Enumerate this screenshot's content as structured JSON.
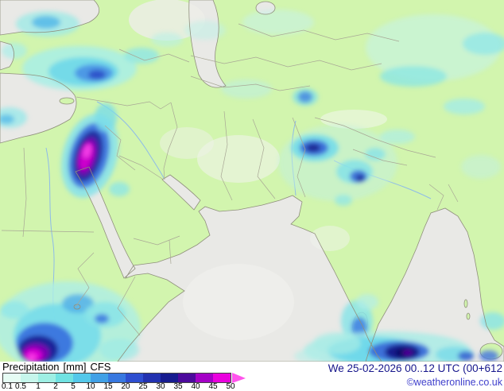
{
  "legend": {
    "label": "Precipitation",
    "unit": "[mm]",
    "model": "CFS",
    "ticks": [
      "0.1",
      "0.5",
      "1",
      "2",
      "5",
      "10",
      "15",
      "20",
      "25",
      "30",
      "35",
      "40",
      "45",
      "50"
    ],
    "colors": [
      "#e6fcf4",
      "#c6f6ec",
      "#9eefe4",
      "#70e2e2",
      "#54c8ea",
      "#40a0e6",
      "#3878e0",
      "#2e4ed0",
      "#2231b0",
      "#171c90",
      "#4c0a9c",
      "#a400c6",
      "#ea00de"
    ],
    "arrow_color": "#ff54ec"
  },
  "footer": {
    "datetime": "We 25-02-2026 00..12 UTC (00+612",
    "copyright": "©weatheronline.co.uk"
  },
  "map": {
    "land_color": "#d2f5ae",
    "sea_color": "#e9e9e6",
    "coast_color": "#8f8f7c",
    "border_color": "#a8a795",
    "river_color": "#8ebbe8"
  }
}
